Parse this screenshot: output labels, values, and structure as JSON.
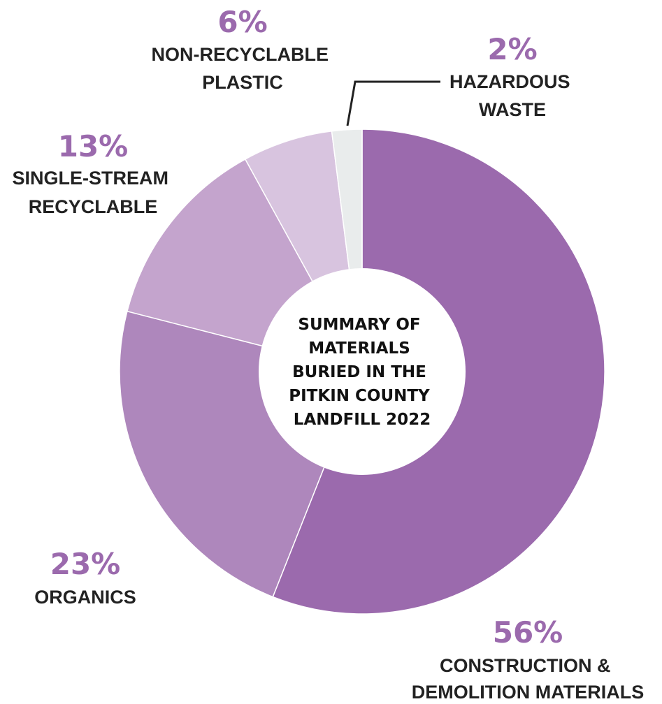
{
  "chart_data": {
    "type": "pie",
    "title": "SUMMARY OF MATERIALS BURIED IN THE PITKIN COUNTY LANDFILL 2022",
    "title_lines": [
      "SUMMARY OF",
      "MATERIALS",
      "BURIED IN THE",
      "PITKIN COUNTY",
      "LANDFILL 2022"
    ],
    "donut": true,
    "label_color": "#9b6aad",
    "slices": [
      {
        "label_lines": [
          "CONSTRUCTION &",
          "DEMOLITION MATERIALS"
        ],
        "value": 56,
        "value_label": "56%",
        "color": "#9b6aad"
      },
      {
        "label_lines": [
          "ORGANICS"
        ],
        "value": 23,
        "value_label": "23%",
        "color": "#ae87bc"
      },
      {
        "label_lines": [
          "SINGLE-STREAM",
          "RECYCLABLE"
        ],
        "value": 13,
        "value_label": "13%",
        "color": "#c4a4cd"
      },
      {
        "label_lines": [
          "NON-RECYCLABLE",
          "PLASTIC"
        ],
        "value": 6,
        "value_label": "6%",
        "color": "#d8c4df"
      },
      {
        "label_lines": [
          "HAZARDOUS",
          "WASTE"
        ],
        "value": 2,
        "value_label": "2%",
        "color": "#e9ecec"
      }
    ]
  }
}
